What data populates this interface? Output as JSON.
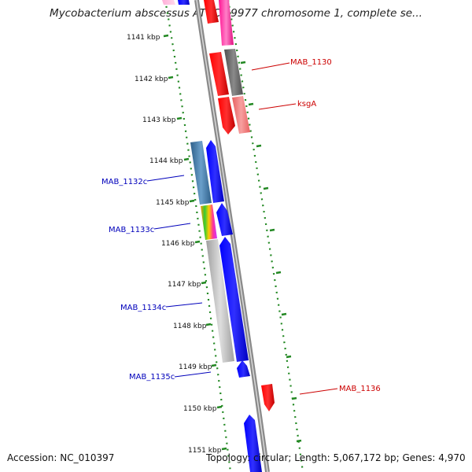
{
  "title": "Mycobacterium abscessus ATCC 19977 chromosome 1, complete se...",
  "footer": {
    "accession": "Accession: NC_010397",
    "summary": "Topology: circular; Length: 5,067,172 bp; Genes: 4,970"
  },
  "ticks": [
    "1141 kbp",
    "1142 kbp",
    "1143 kbp",
    "1144 kbp",
    "1145 kbp",
    "1146 kbp",
    "1147 kbp",
    "1148 kbp",
    "1149 kbp",
    "1150 kbp",
    "1151 kbp"
  ],
  "gene_labels": [
    {
      "text": "MAB_1130",
      "strand": "forward"
    },
    {
      "text": "ksgA",
      "strand": "forward"
    },
    {
      "text": "MAB_1132c",
      "strand": "reverse"
    },
    {
      "text": "MAB_1133c",
      "strand": "reverse"
    },
    {
      "text": "MAB_1134c",
      "strand": "reverse"
    },
    {
      "text": "MAB_1135c",
      "strand": "reverse"
    },
    {
      "text": "MAB_1136",
      "strand": "forward"
    }
  ],
  "colors": {
    "forward_cds": "#ff0000",
    "reverse_cds": "#0000ff",
    "backbone": "#888888",
    "tick_dots": "#228822",
    "forward_label": "#cc0000",
    "reverse_label": "#0000bb"
  }
}
